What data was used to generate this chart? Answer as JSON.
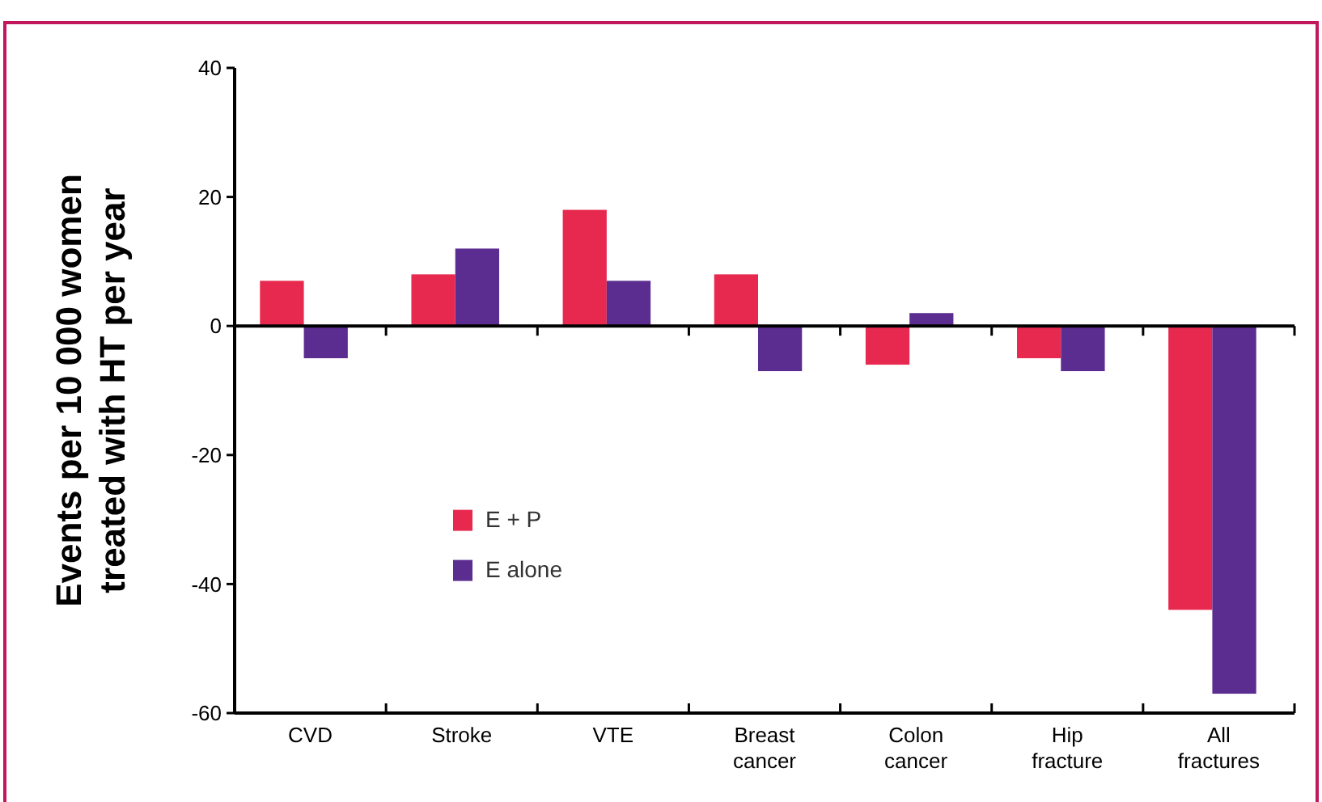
{
  "chart_data": {
    "type": "bar",
    "ylabel": "Events per 10 000 women treated with HT per year",
    "categories": [
      "CVD",
      "Stroke",
      "VTE",
      "Breast cancer",
      "Colon cancer",
      "Hip fracture",
      "All fractures"
    ],
    "series": [
      {
        "name": "E + P",
        "color": "#e8294f",
        "values": [
          7,
          8,
          18,
          8,
          -6,
          -5,
          -44
        ]
      },
      {
        "name": "E alone",
        "color": "#5c2d91",
        "values": [
          -5,
          12,
          7,
          -7,
          2,
          -7,
          -57
        ]
      }
    ],
    "ylim": [
      -60,
      40
    ],
    "yticks": [
      -60,
      -40,
      -20,
      0,
      20,
      40
    ],
    "legend": "bottom left"
  }
}
